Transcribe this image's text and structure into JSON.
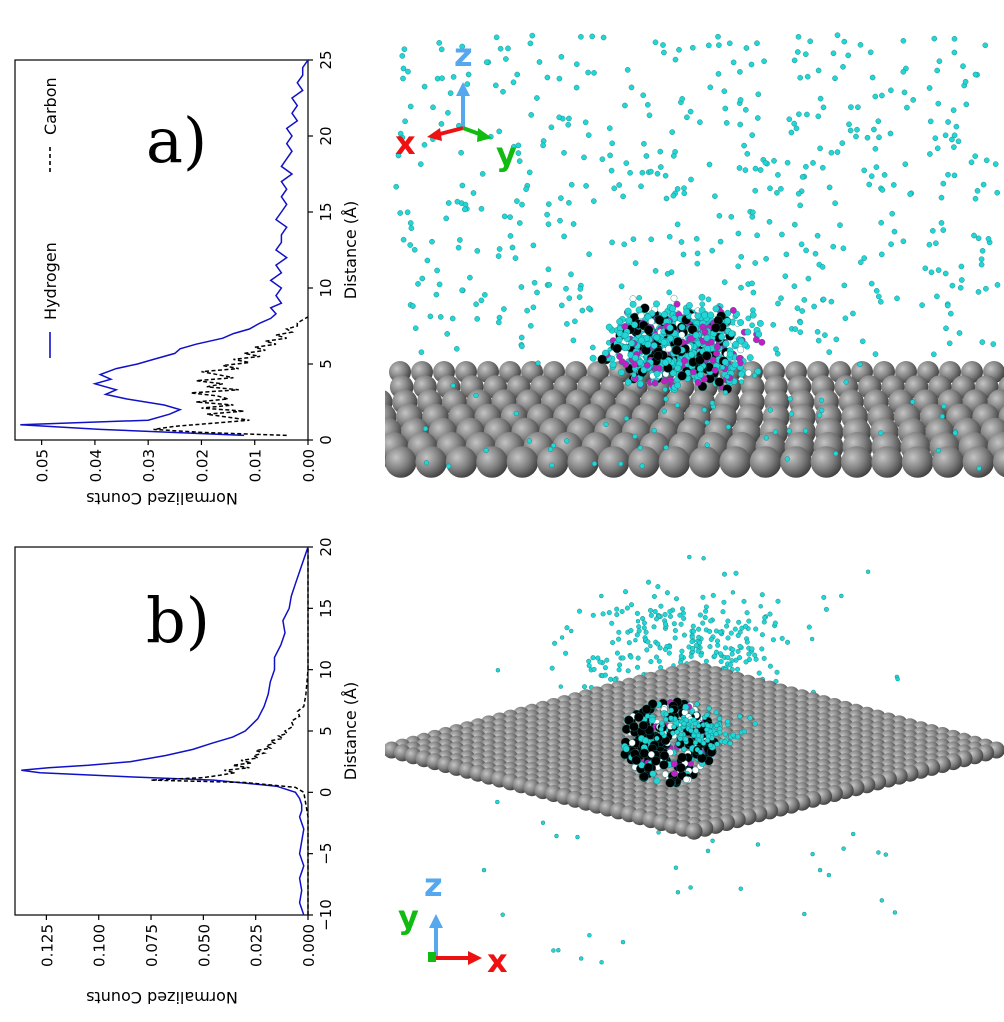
{
  "colors": {
    "hydrogen": "#1010c8",
    "carbon": "#000000",
    "cyan": "#22d6d6",
    "magenta": "#c020c0",
    "grey": "#7a7a7a",
    "x_axis": "#ee1111",
    "y_axis": "#11bb11",
    "z_axis": "#55a8ee"
  },
  "chart_data": [
    {
      "type": "line",
      "panel_label": "a)",
      "orientation": "rotated-90-clockwise",
      "xlabel": "Distance (Å)",
      "ylabel": "Normalized Counts",
      "xlim": [
        0,
        25
      ],
      "ylim": [
        0,
        0.055
      ],
      "xticks": [
        "0",
        "5",
        "10",
        "15",
        "20",
        "25"
      ],
      "yticks": [
        "0.00",
        "0.01",
        "0.02",
        "0.03",
        "0.04",
        "0.05"
      ],
      "legend": [
        "Hydrogen",
        "Carbon"
      ],
      "series": [
        {
          "name": "Hydrogen",
          "style": "solid",
          "x": [
            0.3,
            0.7,
            1.0,
            1.3,
            1.7,
            2.0,
            2.3,
            2.7,
            3.0,
            3.3,
            3.7,
            4.0,
            4.3,
            4.7,
            5.0,
            5.3,
            5.7,
            6.0,
            6.3,
            6.7,
            7.0,
            7.3,
            7.7,
            8.0,
            8.3,
            8.7,
            9.0,
            9.5,
            10.0,
            10.5,
            11.0,
            11.5,
            12.0,
            12.5,
            13.0,
            13.5,
            14.0,
            14.5,
            15.0,
            15.5,
            16.0,
            16.5,
            17.0,
            17.5,
            18.0,
            18.5,
            19.0,
            19.5,
            20.0,
            20.5,
            21.0,
            21.5,
            22.0,
            22.5,
            23.0,
            23.5,
            24.0,
            24.5,
            25.0
          ],
          "values": [
            0.012,
            0.039,
            0.054,
            0.03,
            0.026,
            0.024,
            0.027,
            0.034,
            0.038,
            0.036,
            0.04,
            0.037,
            0.039,
            0.036,
            0.032,
            0.029,
            0.025,
            0.024,
            0.021,
            0.016,
            0.014,
            0.011,
            0.009,
            0.007,
            0.006,
            0.007,
            0.005,
            0.006,
            0.005,
            0.007,
            0.005,
            0.006,
            0.004,
            0.006,
            0.005,
            0.005,
            0.004,
            0.006,
            0.005,
            0.004,
            0.005,
            0.004,
            0.005,
            0.003,
            0.005,
            0.004,
            0.003,
            0.004,
            0.003,
            0.004,
            0.002,
            0.003,
            0.002,
            0.003,
            0.001,
            0.002,
            0.001,
            0.001,
            0.0
          ]
        },
        {
          "name": "Carbon",
          "style": "dashed",
          "x": [
            0.3,
            0.5,
            0.7,
            0.9,
            1.1,
            1.3,
            1.5,
            1.7,
            1.9,
            2.1,
            2.3,
            2.5,
            2.7,
            2.9,
            3.1,
            3.3,
            3.5,
            3.7,
            3.9,
            4.1,
            4.3,
            4.5,
            4.7,
            4.9,
            5.1,
            5.3,
            5.5,
            5.7,
            5.9,
            6.1,
            6.3,
            6.5,
            6.7,
            6.9,
            7.1,
            7.3,
            7.5,
            7.7,
            7.9,
            8.1
          ],
          "values": [
            0.004,
            0.02,
            0.029,
            0.025,
            0.018,
            0.011,
            0.015,
            0.019,
            0.012,
            0.02,
            0.014,
            0.021,
            0.015,
            0.017,
            0.022,
            0.013,
            0.019,
            0.016,
            0.021,
            0.014,
            0.017,
            0.02,
            0.013,
            0.016,
            0.011,
            0.014,
            0.009,
            0.012,
            0.008,
            0.01,
            0.006,
            0.008,
            0.004,
            0.006,
            0.003,
            0.004,
            0.002,
            0.002,
            0.001,
            0.0
          ]
        }
      ]
    },
    {
      "type": "line",
      "panel_label": "b)",
      "orientation": "rotated-90-clockwise",
      "xlabel": "Distance (Å)",
      "ylabel": "Normalized Counts",
      "xlim": [
        -10,
        20
      ],
      "ylim": [
        0,
        0.14
      ],
      "xticks": [
        "−10",
        "−5",
        "0",
        "5",
        "10",
        "15",
        "20"
      ],
      "yticks": [
        "0.000",
        "0.025",
        "0.050",
        "0.075",
        "0.100",
        "0.125"
      ],
      "series": [
        {
          "name": "Hydrogen",
          "style": "solid",
          "x": [
            -10,
            -9,
            -8,
            -7,
            -6,
            -5,
            -4,
            -3,
            -2,
            -1.5,
            -1,
            -0.5,
            0,
            0.5,
            1.0,
            1.3,
            1.6,
            1.8,
            2.0,
            2.2,
            2.5,
            3.0,
            3.5,
            4.0,
            4.5,
            5.0,
            5.5,
            6.0,
            7.0,
            8.0,
            9.0,
            10.0,
            11.0,
            12.0,
            13.0,
            14.0,
            15.0,
            16.0,
            17.0,
            18.0,
            19.0,
            20.0
          ],
          "values": [
            0.002,
            0.004,
            0.003,
            0.004,
            0.002,
            0.004,
            0.003,
            0.002,
            0.004,
            0.003,
            0.003,
            0.004,
            0.006,
            0.015,
            0.045,
            0.09,
            0.128,
            0.137,
            0.124,
            0.105,
            0.085,
            0.068,
            0.055,
            0.046,
            0.036,
            0.03,
            0.027,
            0.024,
            0.021,
            0.019,
            0.018,
            0.016,
            0.016,
            0.013,
            0.011,
            0.012,
            0.009,
            0.008,
            0.006,
            0.004,
            0.002,
            0.0
          ]
        },
        {
          "name": "Carbon",
          "style": "dashed",
          "x": [
            -10,
            -6,
            -2,
            -1,
            0,
            0.4,
            0.8,
            1.0,
            1.2,
            1.4,
            1.6,
            1.8,
            2.0,
            2.2,
            2.4,
            2.6,
            2.8,
            3.0,
            3.2,
            3.4,
            3.6,
            3.8,
            4.0,
            4.2,
            4.4,
            4.6,
            4.8,
            5.0,
            5.4,
            5.8,
            6.2,
            6.6,
            7.0,
            8.0,
            10.0,
            20.0
          ],
          "values": [
            0.0,
            0.0,
            0.0,
            0.001,
            0.002,
            0.006,
            0.03,
            0.075,
            0.05,
            0.042,
            0.035,
            0.04,
            0.028,
            0.036,
            0.027,
            0.032,
            0.024,
            0.026,
            0.021,
            0.025,
            0.018,
            0.02,
            0.016,
            0.018,
            0.012,
            0.014,
            0.01,
            0.011,
            0.007,
            0.008,
            0.004,
            0.005,
            0.002,
            0.001,
            0.0,
            0.0
          ]
        }
      ]
    }
  ],
  "molecule_views": [
    {
      "name": "top-view",
      "axes": [
        "z",
        "x",
        "y"
      ]
    },
    {
      "name": "bottom-view",
      "axes": [
        "z",
        "y",
        "x"
      ]
    }
  ]
}
